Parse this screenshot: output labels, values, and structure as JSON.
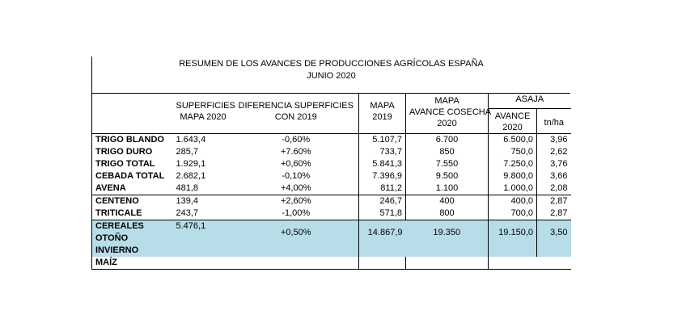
{
  "title": {
    "line1": "RESUMEN DE LOS AVANCES DE PRODUCCIONES AGRÍCOLAS ESPAÑA",
    "line2": "JUNIO 2020"
  },
  "headers": {
    "superficies_l1": "SUPERFICIES",
    "superficies_l2": "MAPA 2020",
    "diferencia_l1": "DIFERENCIA SUPERFICIES",
    "diferencia_l2": "CON 2019",
    "mapa2019_l1": "MAPA",
    "mapa2019_l2": "2019",
    "mapa_avance_l1": "MAPA",
    "mapa_avance_l2": "AVANCE COSECHA",
    "mapa_avance_l3": "2020",
    "asaja": "ASAJA",
    "asaja_avance_l1": "AVANCE",
    "asaja_avance_l2": "2020",
    "tnha": "tn/ha"
  },
  "rows": [
    {
      "name": "TRIGO BLANDO",
      "sup": "1.643,4",
      "dif": "-0,60%",
      "mapa2019": "5.107,7",
      "avance": "6.700",
      "asaja": "6.500,0",
      "tnha": "3,96"
    },
    {
      "name": "TRIGO DURO",
      "sup": "285,7",
      "dif": "+7.60%",
      "mapa2019": "733,7",
      "avance": "850",
      "asaja": "750,0",
      "tnha": "2,62"
    },
    {
      "name": "TRIGO TOTAL",
      "sup": "1.929,1",
      "dif": "+0,60%",
      "mapa2019": "5.841,3",
      "avance": "7.550",
      "asaja": "7.250,0",
      "tnha": "3,76"
    },
    {
      "name": "CEBADA TOTAL",
      "sup": "2.682,1",
      "dif": "-0,10%",
      "mapa2019": "7.396,9",
      "avance": "9.500",
      "asaja": "9.800,0",
      "tnha": "3,66"
    },
    {
      "name": "AVENA",
      "sup": "481,8",
      "dif": "+4,00%",
      "mapa2019": "811,2",
      "avance": "1.100",
      "asaja": "1.000,0",
      "tnha": "2,08"
    },
    {
      "name": "CENTENO",
      "sup": "139,4",
      "dif": "+2,60%",
      "mapa2019": "246,7",
      "avance": "400",
      "asaja": "400,0",
      "tnha": "2,87"
    },
    {
      "name": "TRITICALE",
      "sup": "243,7",
      "dif": "-1,00%",
      "mapa2019": "571,8",
      "avance": "800",
      "asaja": "700,0",
      "tnha": "2,87"
    }
  ],
  "cereales": {
    "name_l1": "CEREALES",
    "name_l2": "OTOÑO",
    "name_l3": "INVIERNO",
    "sup": "5.476,1",
    "dif": "+0,50%",
    "mapa2019": "14.867,9",
    "avance": "19.350",
    "asaja": "19.150,0",
    "tnha": "3,50"
  },
  "maiz": {
    "name": "MAÍZ"
  },
  "colors": {
    "highlight": "#b7dde8"
  }
}
